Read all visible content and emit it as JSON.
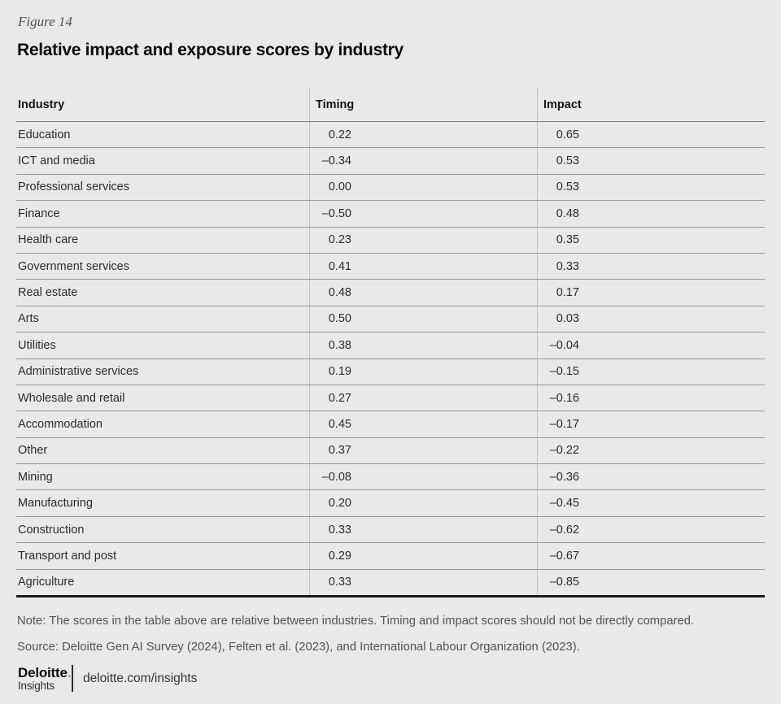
{
  "figure": {
    "label": "Figure 14",
    "title": "Relative impact and exposure scores by industry"
  },
  "table": {
    "columns": {
      "industry": "Industry",
      "timing": "Timing",
      "impact": "Impact"
    },
    "rows": [
      {
        "industry": "Education",
        "timing": "0.22",
        "impact": "0.65"
      },
      {
        "industry": "ICT and media",
        "timing": "–0.34",
        "impact": "0.53"
      },
      {
        "industry": "Professional services",
        "timing": "0.00",
        "impact": "0.53"
      },
      {
        "industry": "Finance",
        "timing": "–0.50",
        "impact": "0.48"
      },
      {
        "industry": "Health care",
        "timing": "0.23",
        "impact": "0.35"
      },
      {
        "industry": "Government services",
        "timing": "0.41",
        "impact": "0.33"
      },
      {
        "industry": "Real estate",
        "timing": "0.48",
        "impact": "0.17"
      },
      {
        "industry": "Arts",
        "timing": "0.50",
        "impact": "0.03"
      },
      {
        "industry": "Utilities",
        "timing": "0.38",
        "impact": "–0.04"
      },
      {
        "industry": "Administrative services",
        "timing": "0.19",
        "impact": "–0.15"
      },
      {
        "industry": "Wholesale and retail",
        "timing": "0.27",
        "impact": "–0.16"
      },
      {
        "industry": "Accommodation",
        "timing": "0.45",
        "impact": "–0.17"
      },
      {
        "industry": "Other",
        "timing": "0.37",
        "impact": "–0.22"
      },
      {
        "industry": "Mining",
        "timing": "–0.08",
        "impact": "–0.36"
      },
      {
        "industry": "Manufacturing",
        "timing": "0.20",
        "impact": "–0.45"
      },
      {
        "industry": "Construction",
        "timing": "0.33",
        "impact": "–0.62"
      },
      {
        "industry": "Transport and post",
        "timing": "0.29",
        "impact": "–0.67"
      },
      {
        "industry": "Agriculture",
        "timing": "0.33",
        "impact": "–0.85"
      }
    ]
  },
  "chart_data": {
    "type": "table",
    "title": "Relative impact and exposure scores by industry",
    "columns": [
      "Industry",
      "Timing",
      "Impact"
    ],
    "rows": [
      [
        "Education",
        0.22,
        0.65
      ],
      [
        "ICT and media",
        -0.34,
        0.53
      ],
      [
        "Professional services",
        0.0,
        0.53
      ],
      [
        "Finance",
        -0.5,
        0.48
      ],
      [
        "Health care",
        0.23,
        0.35
      ],
      [
        "Government services",
        0.41,
        0.33
      ],
      [
        "Real estate",
        0.48,
        0.17
      ],
      [
        "Arts",
        0.5,
        0.03
      ],
      [
        "Utilities",
        0.38,
        -0.04
      ],
      [
        "Administrative services",
        0.19,
        -0.15
      ],
      [
        "Wholesale and retail",
        0.27,
        -0.16
      ],
      [
        "Accommodation",
        0.45,
        -0.17
      ],
      [
        "Other",
        0.37,
        -0.22
      ],
      [
        "Mining",
        -0.08,
        -0.36
      ],
      [
        "Manufacturing",
        0.2,
        -0.45
      ],
      [
        "Construction",
        0.33,
        -0.62
      ],
      [
        "Transport and post",
        0.29,
        -0.67
      ],
      [
        "Agriculture",
        0.33,
        -0.85
      ]
    ]
  },
  "footnotes": {
    "note": "Note: The scores in the table above are relative between industries. Timing and impact scores should not be directly compared.",
    "source": "Source: Deloitte Gen AI Survey (2024), Felten et al. (2023), and International Labour Organization (2023)."
  },
  "footer": {
    "brand_main": "Deloitte",
    "brand_dot": ".",
    "brand_sub": "Insights",
    "link": "deloitte.com/insights"
  },
  "colors": {
    "background": "#e8e9ea",
    "deloitte_green": "#86bc25",
    "row_line": "#97999b",
    "header_line": "#7c7e80",
    "column_divider": "#bfc2c4",
    "table_bottom_line": "#1b1c1d"
  }
}
